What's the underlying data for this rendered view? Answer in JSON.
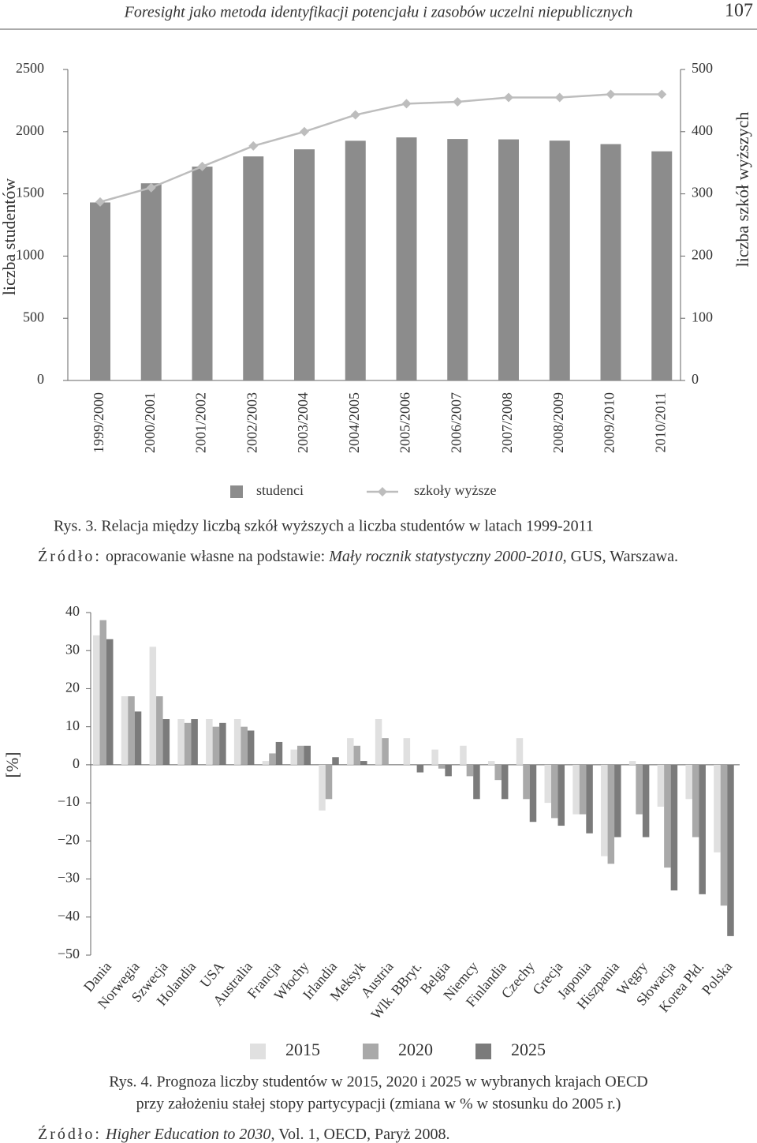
{
  "header": {
    "title": "Foresight jako metoda identyfikacji potencjału i zasobów uczelni niepublicznych",
    "page": "107"
  },
  "chart_data": [
    {
      "type": "combo",
      "categories": [
        "1999/2000",
        "2000/2001",
        "2001/2002",
        "2002/2003",
        "2003/2004",
        "2004/2005",
        "2005/2006",
        "2006/2007",
        "2007/2008",
        "2008/2009",
        "2009/2010",
        "2010/2011"
      ],
      "series": [
        {
          "name": "studenci",
          "type": "bar",
          "color": "#8c8c8c",
          "values": [
            1431,
            1585,
            1719,
            1801,
            1858,
            1927,
            1954,
            1941,
            1938,
            1928,
            1900,
            1842
          ]
        },
        {
          "name": "szkoły wyższe",
          "type": "line",
          "axis": "y2",
          "color": "#bdbdbd",
          "values": [
            287,
            310,
            344,
            377,
            400,
            427,
            445,
            448,
            455,
            455,
            460,
            460
          ]
        }
      ],
      "ylabel": "liczba studentów",
      "y2label": "liczba szkół wyższych",
      "ylim": [
        0,
        2500
      ],
      "yticks": [
        0,
        500,
        1000,
        1500,
        2000,
        2500
      ],
      "y2lim": [
        0,
        500
      ],
      "y2ticks": [
        0,
        100,
        200,
        300,
        400,
        500
      ],
      "caption": [
        "Rys. 3. Relacja między liczbą szkół wyższych a liczba studentów w latach 1999-2011"
      ],
      "source": {
        "label": "Źródło:",
        "parts": [
          " opracowanie własne na podstawie: ",
          "Mały rocznik statystyczny 2000-2010",
          ", GUS, Warszawa."
        ]
      }
    },
    {
      "type": "bar",
      "categories": [
        "Dania",
        "Norwegia",
        "Szwecja",
        "Holandia",
        "USA",
        "Australia",
        "Francja",
        "Włochy",
        "Irlandia",
        "Meksyk",
        "Austria",
        "Wlk. BBryt.",
        "Belgia",
        "Niemcy",
        "Finlandia",
        "Czechy",
        "Grecja",
        "Japonia",
        "Hiszpania",
        "Węgry",
        "Słowacja",
        "Korea Płd.",
        "Polska"
      ],
      "series": [
        {
          "name": "2015",
          "color": "#e0e0e0",
          "values": [
            34,
            18,
            31,
            12,
            12,
            12,
            1,
            4,
            -12,
            7,
            12,
            7,
            4,
            5,
            1,
            7,
            -10,
            -13,
            -24,
            1,
            -11,
            -9,
            -23
          ]
        },
        {
          "name": "2020",
          "color": "#a9a9a9",
          "values": [
            38,
            18,
            18,
            11,
            10,
            10,
            3,
            5,
            -9,
            5,
            7,
            0,
            -1,
            -3,
            -4,
            -9,
            -14,
            -13,
            -26,
            -13,
            -27,
            -19,
            -37
          ]
        },
        {
          "name": "2025",
          "color": "#7b7b7b",
          "values": [
            33,
            14,
            12,
            12,
            11,
            9,
            6,
            5,
            2,
            1,
            0,
            -2,
            -3,
            -9,
            -9,
            -15,
            -16,
            -18,
            -19,
            -19,
            -33,
            -34,
            -45
          ]
        }
      ],
      "ylabel": "[%]",
      "ylim": [
        -50,
        40
      ],
      "yticks": [
        {
          "value": -50,
          "label": "−50"
        },
        {
          "value": -40,
          "label": "−40"
        },
        {
          "value": -30,
          "label": "−30"
        },
        {
          "value": -20,
          "label": "−20"
        },
        {
          "value": -10,
          "label": "−10"
        },
        0,
        10,
        20,
        30,
        40
      ],
      "caption": [
        "Rys. 4. Prognoza liczby studentów w 2015, 2020 i 2025 w wybranych krajach OECD",
        "przy założeniu stałej stopy partycypacji (zmiana w % w stosunku do 2005 r.)"
      ],
      "source": {
        "label": "Źródło:",
        "parts": [
          " ",
          "Higher Education to 2030",
          ", Vol. 1, OECD, Paryż 2008."
        ]
      }
    }
  ]
}
